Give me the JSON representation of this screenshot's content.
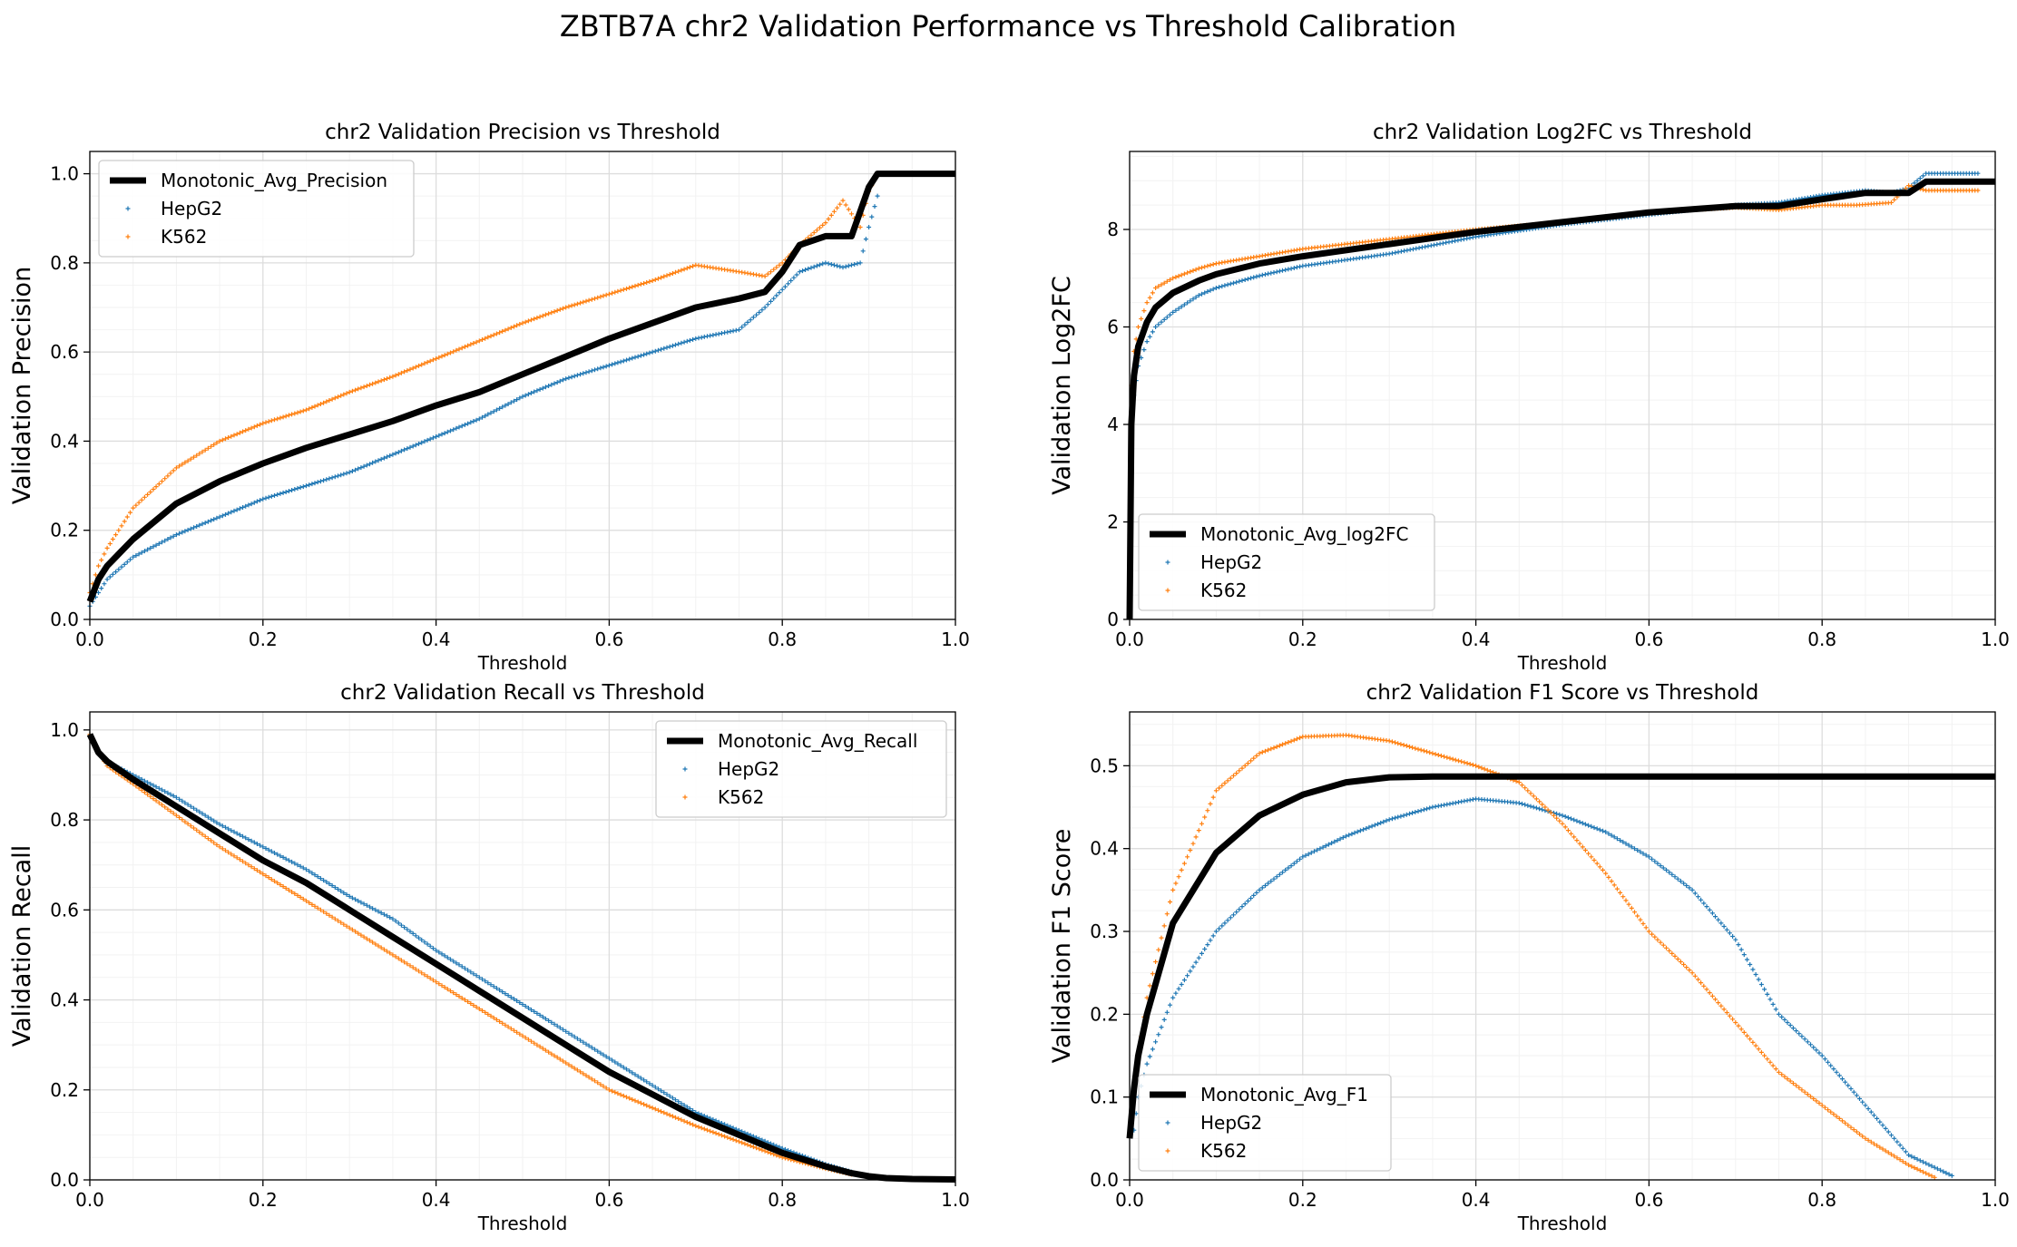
{
  "figure": {
    "title": "ZBTB7A chr2 Validation Performance vs Threshold Calibration"
  },
  "colors": {
    "avg": "#000000",
    "hepg2": "#1f77b4",
    "k562": "#ff7f0e",
    "grid_major": "#dddddd",
    "grid_minor": "#f2f2f2"
  },
  "chart_data": [
    {
      "id": "precision",
      "type": "scatter",
      "title": "chr2 Validation Precision vs Threshold",
      "xlabel": "Threshold",
      "ylabel": "Validation Precision",
      "xlim": [
        0,
        1
      ],
      "ylim": [
        0,
        1.05
      ],
      "xticks": [
        "0.0",
        "0.2",
        "0.4",
        "0.6",
        "0.8",
        "1.0"
      ],
      "yticks": [
        "0.0",
        "0.2",
        "0.4",
        "0.6",
        "0.8",
        "1.0"
      ],
      "grid": true,
      "legend_position": "upper-left",
      "series": [
        {
          "name": "Monotonic_Avg_Precision",
          "style": "line",
          "x": [
            0,
            0.01,
            0.02,
            0.05,
            0.1,
            0.15,
            0.2,
            0.25,
            0.3,
            0.35,
            0.4,
            0.45,
            0.5,
            0.55,
            0.6,
            0.65,
            0.7,
            0.75,
            0.78,
            0.8,
            0.82,
            0.85,
            0.88,
            0.9,
            0.91,
            0.92,
            1.0
          ],
          "y": [
            0.04,
            0.09,
            0.12,
            0.18,
            0.26,
            0.31,
            0.35,
            0.385,
            0.415,
            0.445,
            0.48,
            0.51,
            0.55,
            0.59,
            0.63,
            0.665,
            0.7,
            0.72,
            0.735,
            0.78,
            0.84,
            0.86,
            0.86,
            0.97,
            1.0,
            1.0,
            1.0
          ]
        },
        {
          "name": "HepG2",
          "style": "points",
          "x": [
            0,
            0.01,
            0.02,
            0.05,
            0.1,
            0.15,
            0.2,
            0.25,
            0.3,
            0.35,
            0.4,
            0.45,
            0.5,
            0.55,
            0.6,
            0.65,
            0.7,
            0.75,
            0.78,
            0.8,
            0.82,
            0.85,
            0.87,
            0.89,
            0.9,
            0.91
          ],
          "y": [
            0.03,
            0.06,
            0.09,
            0.14,
            0.19,
            0.23,
            0.27,
            0.3,
            0.33,
            0.37,
            0.41,
            0.45,
            0.5,
            0.54,
            0.57,
            0.6,
            0.63,
            0.65,
            0.7,
            0.74,
            0.78,
            0.8,
            0.79,
            0.8,
            0.88,
            0.95
          ]
        },
        {
          "name": "K562",
          "style": "points",
          "x": [
            0,
            0.01,
            0.02,
            0.05,
            0.1,
            0.15,
            0.2,
            0.25,
            0.3,
            0.35,
            0.4,
            0.45,
            0.5,
            0.55,
            0.6,
            0.65,
            0.7,
            0.75,
            0.78,
            0.8,
            0.82,
            0.85,
            0.87,
            0.89,
            0.9,
            0.91
          ],
          "y": [
            0.06,
            0.12,
            0.16,
            0.25,
            0.34,
            0.4,
            0.44,
            0.47,
            0.51,
            0.545,
            0.585,
            0.625,
            0.665,
            0.7,
            0.73,
            0.76,
            0.795,
            0.78,
            0.77,
            0.8,
            0.84,
            0.89,
            0.94,
            0.88,
            0.96,
            1.0
          ]
        }
      ]
    },
    {
      "id": "log2fc",
      "type": "scatter",
      "title": "chr2 Validation Log2FC vs Threshold",
      "xlabel": "Threshold",
      "ylabel": "Validation Log2FC",
      "xlim": [
        0,
        1
      ],
      "ylim": [
        0,
        9.6
      ],
      "xticks": [
        "0.0",
        "0.2",
        "0.4",
        "0.6",
        "0.8",
        "1.0"
      ],
      "yticks": [
        "0",
        "2",
        "4",
        "6",
        "8"
      ],
      "grid": true,
      "legend_position": "lower-left",
      "series": [
        {
          "name": "Monotonic_Avg_log2FC",
          "style": "line",
          "x": [
            0,
            0.002,
            0.005,
            0.01,
            0.02,
            0.03,
            0.05,
            0.08,
            0.1,
            0.15,
            0.2,
            0.3,
            0.4,
            0.5,
            0.6,
            0.7,
            0.75,
            0.8,
            0.85,
            0.88,
            0.9,
            0.92,
            0.95,
            1.0
          ],
          "y": [
            0,
            4.0,
            5.0,
            5.6,
            6.1,
            6.4,
            6.7,
            6.95,
            7.08,
            7.3,
            7.45,
            7.7,
            7.95,
            8.15,
            8.35,
            8.48,
            8.48,
            8.62,
            8.75,
            8.75,
            8.75,
            8.98,
            8.98,
            8.98
          ]
        },
        {
          "name": "HepG2",
          "style": "points",
          "x": [
            0.002,
            0.005,
            0.01,
            0.02,
            0.03,
            0.05,
            0.08,
            0.1,
            0.15,
            0.2,
            0.3,
            0.4,
            0.5,
            0.6,
            0.7,
            0.75,
            0.8,
            0.85,
            0.88,
            0.9,
            0.92,
            0.95,
            0.98
          ],
          "y": [
            3.8,
            4.6,
            5.2,
            5.7,
            6.0,
            6.3,
            6.65,
            6.8,
            7.05,
            7.25,
            7.5,
            7.85,
            8.1,
            8.3,
            8.5,
            8.55,
            8.7,
            8.8,
            8.75,
            8.85,
            9.15,
            9.15,
            9.15
          ]
        },
        {
          "name": "K562",
          "style": "points",
          "x": [
            0.002,
            0.005,
            0.01,
            0.02,
            0.03,
            0.05,
            0.08,
            0.1,
            0.15,
            0.2,
            0.3,
            0.4,
            0.5,
            0.6,
            0.7,
            0.75,
            0.8,
            0.84,
            0.88,
            0.9,
            0.92,
            0.95,
            0.98
          ],
          "y": [
            4.8,
            5.5,
            6.0,
            6.5,
            6.8,
            7.0,
            7.2,
            7.3,
            7.45,
            7.6,
            7.8,
            8.0,
            8.15,
            8.35,
            8.45,
            8.4,
            8.5,
            8.5,
            8.55,
            8.9,
            8.8,
            8.8,
            8.8
          ]
        }
      ]
    },
    {
      "id": "recall",
      "type": "scatter",
      "title": "chr2 Validation Recall vs Threshold",
      "xlabel": "Threshold",
      "ylabel": "Validation Recall",
      "xlim": [
        0,
        1
      ],
      "ylim": [
        0,
        1.04
      ],
      "xticks": [
        "0.0",
        "0.2",
        "0.4",
        "0.6",
        "0.8",
        "1.0"
      ],
      "yticks": [
        "0.0",
        "0.2",
        "0.4",
        "0.6",
        "0.8",
        "1.0"
      ],
      "grid": true,
      "legend_position": "upper-right",
      "series": [
        {
          "name": "Monotonic_Avg_Recall",
          "style": "line",
          "x": [
            0,
            0.01,
            0.02,
            0.05,
            0.1,
            0.15,
            0.2,
            0.25,
            0.3,
            0.35,
            0.4,
            0.45,
            0.5,
            0.55,
            0.6,
            0.65,
            0.7,
            0.75,
            0.8,
            0.85,
            0.88,
            0.9,
            0.92,
            0.95,
            1.0
          ],
          "y": [
            0.99,
            0.95,
            0.93,
            0.89,
            0.83,
            0.77,
            0.71,
            0.66,
            0.6,
            0.54,
            0.48,
            0.42,
            0.36,
            0.3,
            0.24,
            0.19,
            0.14,
            0.1,
            0.06,
            0.03,
            0.015,
            0.008,
            0.004,
            0.002,
            0.001
          ]
        },
        {
          "name": "HepG2",
          "style": "points",
          "x": [
            0,
            0.01,
            0.02,
            0.05,
            0.1,
            0.15,
            0.2,
            0.25,
            0.3,
            0.35,
            0.4,
            0.45,
            0.5,
            0.55,
            0.6,
            0.65,
            0.7,
            0.75,
            0.8,
            0.85,
            0.88
          ],
          "y": [
            0.99,
            0.95,
            0.93,
            0.9,
            0.85,
            0.79,
            0.74,
            0.69,
            0.63,
            0.58,
            0.51,
            0.45,
            0.39,
            0.33,
            0.27,
            0.21,
            0.15,
            0.11,
            0.07,
            0.035,
            0.018
          ]
        },
        {
          "name": "K562",
          "style": "points",
          "x": [
            0,
            0.01,
            0.02,
            0.05,
            0.1,
            0.15,
            0.2,
            0.25,
            0.3,
            0.35,
            0.4,
            0.45,
            0.5,
            0.55,
            0.6,
            0.65,
            0.7,
            0.75,
            0.8,
            0.85,
            0.88
          ],
          "y": [
            0.99,
            0.95,
            0.92,
            0.88,
            0.81,
            0.74,
            0.68,
            0.62,
            0.56,
            0.5,
            0.44,
            0.38,
            0.32,
            0.26,
            0.2,
            0.16,
            0.12,
            0.085,
            0.05,
            0.025,
            0.012
          ]
        }
      ]
    },
    {
      "id": "f1",
      "type": "scatter",
      "title": "chr2 Validation F1 Score vs Threshold",
      "xlabel": "Threshold",
      "ylabel": "Validation F1 Score",
      "xlim": [
        0,
        1
      ],
      "ylim": [
        0,
        0.565
      ],
      "xticks": [
        "0.0",
        "0.2",
        "0.4",
        "0.6",
        "0.8",
        "1.0"
      ],
      "yticks": [
        "0.0",
        "0.1",
        "0.2",
        "0.3",
        "0.4",
        "0.5"
      ],
      "grid": true,
      "legend_position": "lower-left",
      "series": [
        {
          "name": "Monotonic_Avg_F1",
          "style": "line",
          "x": [
            0,
            0.005,
            0.01,
            0.02,
            0.05,
            0.1,
            0.15,
            0.2,
            0.25,
            0.3,
            0.35,
            0.4,
            0.5,
            0.6,
            0.7,
            0.8,
            0.9,
            1.0
          ],
          "y": [
            0.05,
            0.11,
            0.15,
            0.2,
            0.31,
            0.395,
            0.44,
            0.465,
            0.48,
            0.486,
            0.487,
            0.487,
            0.487,
            0.487,
            0.487,
            0.487,
            0.487,
            0.487
          ]
        },
        {
          "name": "HepG2",
          "style": "points",
          "x": [
            0.005,
            0.01,
            0.02,
            0.05,
            0.1,
            0.15,
            0.2,
            0.25,
            0.3,
            0.35,
            0.4,
            0.45,
            0.5,
            0.55,
            0.6,
            0.65,
            0.7,
            0.75,
            0.8,
            0.85,
            0.9,
            0.95
          ],
          "y": [
            0.06,
            0.1,
            0.14,
            0.22,
            0.3,
            0.35,
            0.39,
            0.415,
            0.435,
            0.45,
            0.46,
            0.455,
            0.44,
            0.42,
            0.39,
            0.35,
            0.29,
            0.2,
            0.15,
            0.09,
            0.03,
            0.005
          ]
        },
        {
          "name": "K562",
          "style": "points",
          "x": [
            0.005,
            0.01,
            0.02,
            0.05,
            0.1,
            0.15,
            0.2,
            0.25,
            0.3,
            0.35,
            0.4,
            0.45,
            0.5,
            0.55,
            0.6,
            0.65,
            0.7,
            0.75,
            0.8,
            0.85,
            0.9,
            0.93
          ],
          "y": [
            0.1,
            0.15,
            0.22,
            0.35,
            0.47,
            0.515,
            0.535,
            0.537,
            0.53,
            0.515,
            0.5,
            0.48,
            0.43,
            0.37,
            0.3,
            0.25,
            0.19,
            0.13,
            0.09,
            0.05,
            0.018,
            0.003
          ]
        }
      ]
    }
  ]
}
